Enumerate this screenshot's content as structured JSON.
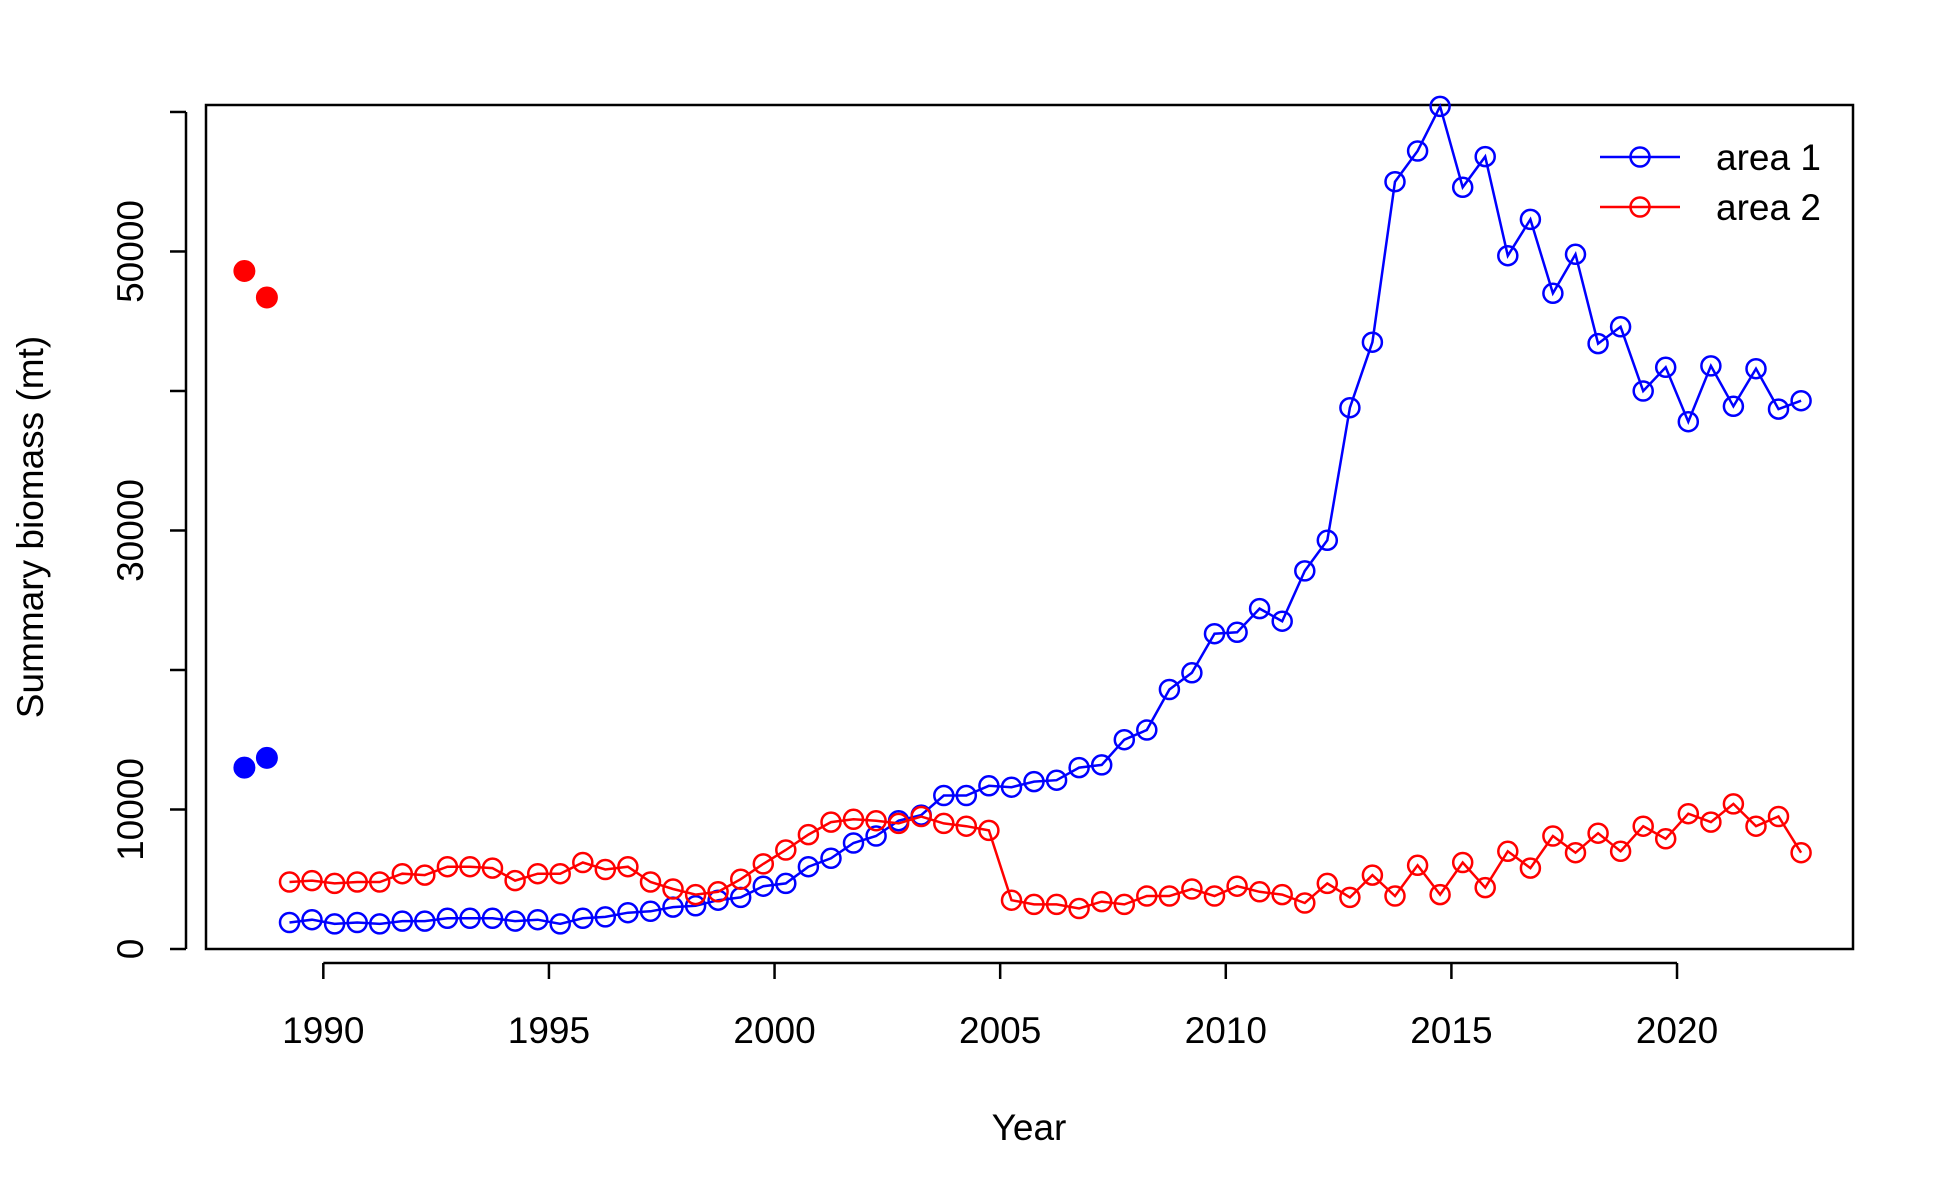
{
  "chart_data": {
    "type": "line",
    "xlabel": "Year",
    "ylabel": "Summary biomass (mt)",
    "xlim": [
      1985.7,
      1988.25
    ],
    "xlim_note": "",
    "x_range": [
      1987.4,
      2023.9
    ],
    "y_range": [
      0,
      60500
    ],
    "x_ticks": [
      "1990",
      "1995",
      "2000",
      "2005",
      "2010",
      "2015",
      "2020"
    ],
    "y_ticks": [
      "0",
      "10000",
      "30000",
      "50000"
    ],
    "legend_position": "top-right",
    "grid": false,
    "colors": {
      "area1": "#0000FF",
      "area2": "#FF0000"
    },
    "series": [
      {
        "name": "area 1",
        "color": "#0000FF",
        "initial": [
          {
            "x": 1988.25,
            "y": 13000
          },
          {
            "x": 1988.75,
            "y": 13700
          }
        ],
        "x": [
          1989.25,
          1989.75,
          1990.25,
          1990.75,
          1991.25,
          1991.75,
          1992.25,
          1992.75,
          1993.25,
          1993.75,
          1994.25,
          1994.75,
          1995.25,
          1995.75,
          1996.25,
          1996.75,
          1997.25,
          1997.75,
          1998.25,
          1998.75,
          1999.25,
          1999.75,
          2000.25,
          2000.75,
          2001.25,
          2001.75,
          2002.25,
          2002.75,
          2003.25,
          2003.75,
          2004.25,
          2004.75,
          2005.25,
          2005.75,
          2006.25,
          2006.75,
          2007.25,
          2007.75,
          2008.25,
          2008.75,
          2009.25,
          2009.75,
          2010.25,
          2010.75,
          2011.25,
          2011.75,
          2012.25,
          2012.75,
          2013.25,
          2013.75,
          2014.25,
          2014.75,
          2015.25,
          2015.75,
          2016.25,
          2016.75,
          2017.25,
          2017.75,
          2018.25,
          2018.75,
          2019.25,
          2019.75,
          2020.25,
          2020.75,
          2021.25,
          2021.75,
          2022.25,
          2022.75
        ],
        "y": [
          1900,
          2100,
          1800,
          1900,
          1800,
          2000,
          2000,
          2200,
          2200,
          2200,
          2000,
          2100,
          1800,
          2200,
          2300,
          2600,
          2700,
          3000,
          3100,
          3500,
          3700,
          4500,
          4700,
          5900,
          6500,
          7600,
          8100,
          9200,
          9600,
          11000,
          11000,
          11700,
          11600,
          12000,
          12100,
          13000,
          13200,
          15000,
          15700,
          18600,
          19800,
          22600,
          22700,
          24400,
          23500,
          27100,
          29300,
          38800,
          43500,
          55000,
          57200,
          60400,
          54600,
          56800,
          49700,
          52300,
          47000,
          49800,
          43400,
          44600,
          40000,
          41700,
          37800,
          41800,
          38900,
          41600,
          38700,
          39300
        ]
      },
      {
        "name": "area 2",
        "color": "#FF0000",
        "initial": [
          {
            "x": 1988.25,
            "y": 48600
          },
          {
            "x": 1988.75,
            "y": 46700
          }
        ],
        "x": [
          1989.25,
          1989.75,
          1990.25,
          1990.75,
          1991.25,
          1991.75,
          1992.25,
          1992.75,
          1993.25,
          1993.75,
          1994.25,
          1994.75,
          1995.25,
          1995.75,
          1996.25,
          1996.75,
          1997.25,
          1997.75,
          1998.25,
          1998.75,
          1999.25,
          1999.75,
          2000.25,
          2000.75,
          2001.25,
          2001.75,
          2002.25,
          2002.75,
          2003.25,
          2003.75,
          2004.25,
          2004.75,
          2005.25,
          2005.75,
          2006.25,
          2006.75,
          2007.25,
          2007.75,
          2008.25,
          2008.75,
          2009.25,
          2009.75,
          2010.25,
          2010.75,
          2011.25,
          2011.75,
          2012.25,
          2012.75,
          2013.25,
          2013.75,
          2014.25,
          2014.75,
          2015.25,
          2015.75,
          2016.25,
          2016.75,
          2017.25,
          2017.75,
          2018.25,
          2018.75,
          2019.25,
          2019.75,
          2020.25,
          2020.75,
          2021.25,
          2021.75,
          2022.25,
          2022.75
        ],
        "y": [
          4800,
          4900,
          4700,
          4800,
          4800,
          5400,
          5300,
          5900,
          5900,
          5800,
          4900,
          5400,
          5400,
          6200,
          5700,
          5900,
          4800,
          4300,
          3900,
          4100,
          5000,
          6100,
          7100,
          8200,
          9100,
          9300,
          9200,
          9000,
          9500,
          9000,
          8800,
          8500,
          3500,
          3200,
          3200,
          2900,
          3400,
          3200,
          3800,
          3800,
          4300,
          3800,
          4500,
          4100,
          3900,
          3300,
          4700,
          3700,
          5300,
          3800,
          6000,
          3900,
          6200,
          4400,
          7000,
          5800,
          8100,
          6900,
          8300,
          7000,
          8800,
          7900,
          9700,
          9100,
          10400,
          8800,
          9500,
          6900
        ]
      }
    ]
  }
}
